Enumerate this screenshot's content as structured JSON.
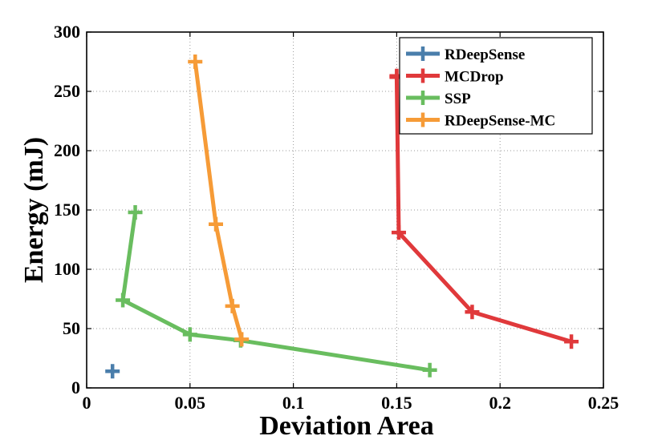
{
  "chart_data": {
    "type": "line",
    "title": "",
    "xlabel": "Deviation Area",
    "ylabel": "Energy (mJ)",
    "xlim": [
      0,
      0.25
    ],
    "ylim": [
      0,
      300
    ],
    "xticks": [
      0,
      0.05,
      0.1,
      0.15,
      0.2,
      0.25
    ],
    "xtick_labels": [
      "0",
      "0.05",
      "0.1",
      "0.15",
      "0.2",
      "0.25"
    ],
    "yticks": [
      0,
      50,
      100,
      150,
      200,
      250,
      300
    ],
    "ytick_labels": [
      "0",
      "50",
      "100",
      "150",
      "200",
      "250",
      "300"
    ],
    "grid": true,
    "legend_position": "top-right",
    "series": [
      {
        "name": "RDeepSense",
        "color": "#4a7eab",
        "marker": "+",
        "x": [
          0.0125
        ],
        "y": [
          14
        ]
      },
      {
        "name": "MCDrop",
        "color": "#e0393b",
        "marker": "+",
        "x": [
          0.15,
          0.15,
          0.151,
          0.1865,
          0.2345
        ],
        "y": [
          263,
          262,
          131,
          64,
          39
        ]
      },
      {
        "name": "SSP",
        "color": "#69bd5f",
        "marker": "+",
        "x": [
          0.0235,
          0.0175,
          0.05,
          0.0745,
          0.166
        ],
        "y": [
          148,
          74,
          45,
          40,
          15
        ]
      },
      {
        "name": "RDeepSense-MC",
        "color": "#f69b37",
        "marker": "+",
        "x": [
          0.0525,
          0.0625,
          0.0705,
          0.075
        ],
        "y": [
          275,
          138,
          69,
          41
        ]
      }
    ]
  }
}
